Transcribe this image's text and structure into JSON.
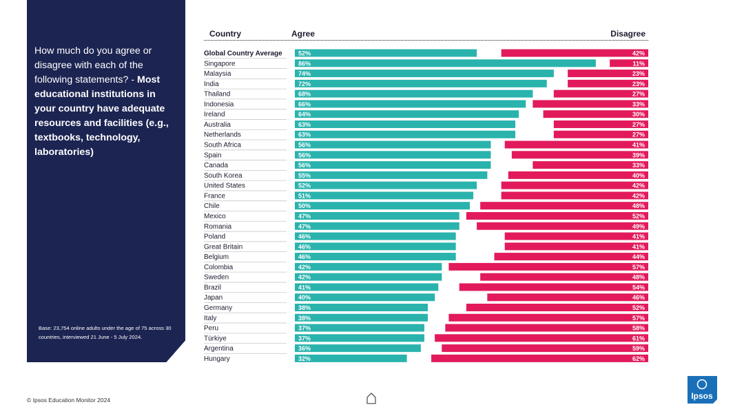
{
  "question": {
    "normal": "How much do you agree or disagree with each of the following statements? - ",
    "bold": "Most educational institutions in your country have adequate resources and facilities (e.g., textbooks, technology, laboratories)"
  },
  "base_note": "Base: 23,754 online adults under the age of 75 across 30 countries, interviewed 21 June - 5 July 2024.",
  "footer": "© Ipsos Education Monitor 2024",
  "logo_text": "Ipsos",
  "colors": {
    "agree": "#2ab3ad",
    "disagree": "#e21a5b",
    "panel": "#1c2452",
    "logo": "#1a70b8"
  },
  "chart_data": {
    "type": "bar",
    "orientation": "horizontal-diverging",
    "headers": {
      "country": "Country",
      "agree": "Agree",
      "disagree": "Disagree"
    },
    "categories": [
      "Global Country Average",
      "Singapore",
      "Malaysia",
      "India",
      "Thailand",
      "Indonesia",
      "Ireland",
      "Australia",
      "Netherlands",
      "South Africa",
      "Spain",
      "Canada",
      "South Korea",
      "United States",
      "France",
      "Chile",
      "Mexico",
      "Romania",
      "Poland",
      "Great Britain",
      "Belgium",
      "Colombia",
      "Sweden",
      "Brazil",
      "Japan",
      "Germany",
      "Italy",
      "Peru",
      "Türkiye",
      "Argentina",
      "Hungary"
    ],
    "series": [
      {
        "name": "Agree",
        "values": [
          52,
          86,
          74,
          72,
          68,
          66,
          64,
          63,
          63,
          56,
          56,
          56,
          55,
          52,
          51,
          50,
          47,
          47,
          46,
          46,
          46,
          42,
          42,
          41,
          40,
          38,
          38,
          37,
          37,
          36,
          32
        ]
      },
      {
        "name": "Disagree",
        "values": [
          42,
          11,
          23,
          23,
          27,
          33,
          30,
          27,
          27,
          41,
          39,
          33,
          40,
          42,
          42,
          48,
          52,
          49,
          41,
          41,
          44,
          57,
          48,
          54,
          46,
          52,
          57,
          58,
          61,
          59,
          62
        ]
      }
    ],
    "value_suffix": "%",
    "xlim": [
      0,
      100
    ]
  }
}
